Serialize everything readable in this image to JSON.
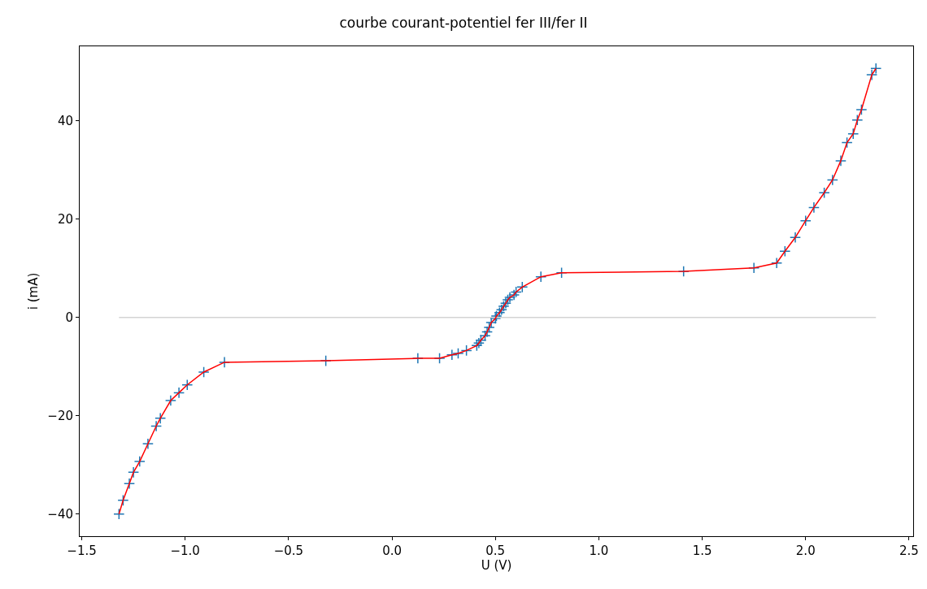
{
  "chart_data": {
    "type": "line",
    "title": "courbe courant-potentiel fer III/fer II",
    "xlabel": "U (V)",
    "ylabel": "i (mA)",
    "xlim": [
      -1.51,
      2.52
    ],
    "ylim": [
      -44.5,
      55.2
    ],
    "xticks": [
      {
        "value": -1.5,
        "label": "−1.5"
      },
      {
        "value": -1.0,
        "label": "−1.0"
      },
      {
        "value": -0.5,
        "label": "−0.5"
      },
      {
        "value": 0,
        "label": "0.0"
      },
      {
        "value": 0.5,
        "label": "0.5"
      },
      {
        "value": 1.0,
        "label": "1.0"
      },
      {
        "value": 1.5,
        "label": "1.5"
      },
      {
        "value": 2.0,
        "label": "2.0"
      },
      {
        "value": 2.5,
        "label": "2.5"
      }
    ],
    "yticks": [
      {
        "value": -40,
        "label": "−40"
      },
      {
        "value": -20,
        "label": "−20"
      },
      0,
      20,
      40
    ],
    "series": [
      {
        "color": "#d3d3d3",
        "marker": "none",
        "x": [
          -1.32,
          2.34
        ],
        "values": [
          0,
          0
        ]
      },
      {
        "color": "#ff0000",
        "marker": "none",
        "x": [
          -1.32,
          -1.3,
          -1.27,
          -1.25,
          -1.22,
          -1.18,
          -1.14,
          -1.12,
          -1.07,
          -1.03,
          -0.99,
          -0.91,
          -0.81,
          -0.32,
          0.125,
          0.23,
          0.29,
          0.32,
          0.36,
          0.41,
          0.42,
          0.43,
          0.45,
          0.46,
          0.47,
          0.48,
          0.5,
          0.505,
          0.52,
          0.53,
          0.54,
          0.55,
          0.56,
          0.57,
          0.59,
          0.6,
          0.63,
          0.72,
          0.82,
          1.41,
          1.75,
          1.86,
          1.9,
          1.95,
          2.0,
          2.04,
          2.09,
          2.13,
          2.17,
          2.2,
          2.23,
          2.25,
          2.27,
          2.32,
          2.34
        ],
        "values": [
          -40,
          -37.2,
          -33.8,
          -31.5,
          -29.3,
          -25.7,
          -22.1,
          -20.5,
          -16.9,
          -15.3,
          -13.7,
          -11.1,
          -9.1,
          -8.8,
          -8.3,
          -8.3,
          -7.6,
          -7.3,
          -6.7,
          -5.7,
          -5.2,
          -4.6,
          -3.7,
          -2.9,
          -2.0,
          -1.0,
          -0.2,
          0.3,
          1.0,
          1.6,
          2.3,
          2.9,
          3.6,
          4.1,
          4.6,
          5.2,
          6.2,
          8.3,
          9.1,
          9.4,
          10.1,
          11.1,
          13.5,
          16.3,
          19.7,
          22.4,
          25.4,
          28.0,
          31.9,
          35.6,
          37.4,
          40.2,
          42.3,
          49.4,
          50.7
        ]
      },
      {
        "type": "scatter",
        "color": "#1f77b4",
        "marker": "cross",
        "x": [
          -1.32,
          -1.3,
          -1.27,
          -1.25,
          -1.22,
          -1.18,
          -1.14,
          -1.12,
          -1.07,
          -1.03,
          -0.99,
          -0.91,
          -0.81,
          -0.32,
          0.125,
          0.23,
          0.29,
          0.32,
          0.36,
          0.41,
          0.42,
          0.43,
          0.45,
          0.46,
          0.47,
          0.48,
          0.5,
          0.505,
          0.52,
          0.53,
          0.54,
          0.55,
          0.56,
          0.57,
          0.59,
          0.6,
          0.63,
          0.72,
          0.82,
          1.41,
          1.75,
          1.86,
          1.9,
          1.95,
          2.0,
          2.04,
          2.09,
          2.13,
          2.17,
          2.2,
          2.23,
          2.25,
          2.27,
          2.32,
          2.34
        ],
        "values": [
          -40,
          -37.2,
          -33.8,
          -31.5,
          -29.3,
          -25.7,
          -22.1,
          -20.5,
          -16.9,
          -15.3,
          -13.7,
          -11.1,
          -9.1,
          -8.8,
          -8.3,
          -8.3,
          -7.6,
          -7.3,
          -6.7,
          -5.7,
          -5.2,
          -4.6,
          -3.7,
          -2.9,
          -2.0,
          -1.0,
          -0.2,
          0.3,
          1.0,
          1.6,
          2.3,
          2.9,
          3.6,
          4.1,
          4.6,
          5.2,
          6.2,
          8.3,
          9.1,
          9.4,
          10.1,
          11.1,
          13.5,
          16.3,
          19.7,
          22.4,
          25.4,
          28.0,
          31.9,
          35.6,
          37.4,
          40.2,
          42.3,
          49.4,
          50.7
        ]
      }
    ]
  }
}
